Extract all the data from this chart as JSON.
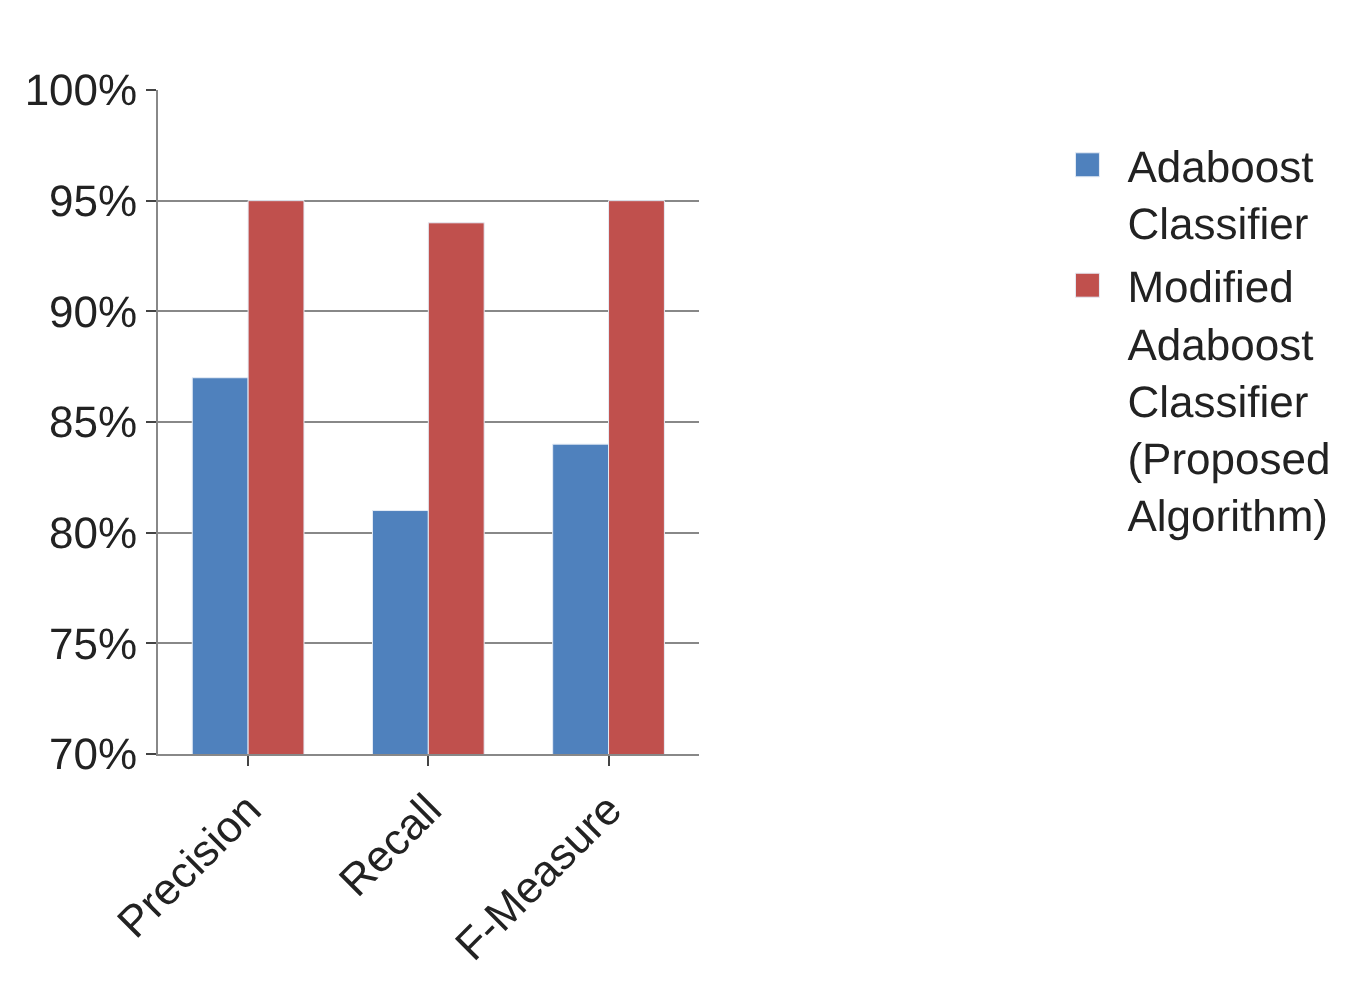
{
  "chart_data": {
    "type": "bar",
    "categories": [
      "Precision",
      "Recall",
      "F-Measure"
    ],
    "series": [
      {
        "name": "Adaboost Classifier",
        "color": "#4f81bd",
        "values": [
          87,
          81,
          84
        ]
      },
      {
        "name": "Modified Adaboost Classifier (Proposed Algorithm)",
        "color": "#c0504d",
        "values": [
          95,
          94,
          95
        ]
      }
    ],
    "ylim": [
      70,
      100
    ],
    "yticks": [
      {
        "value": 70,
        "label": "70%"
      },
      {
        "value": 75,
        "label": "75%"
      },
      {
        "value": 80,
        "label": "80%"
      },
      {
        "value": 85,
        "label": "85%"
      },
      {
        "value": 90,
        "label": "90%"
      },
      {
        "value": 95,
        "label": "95%"
      },
      {
        "value": 100,
        "label": "100%"
      }
    ],
    "grid": "y",
    "legend": "right"
  }
}
